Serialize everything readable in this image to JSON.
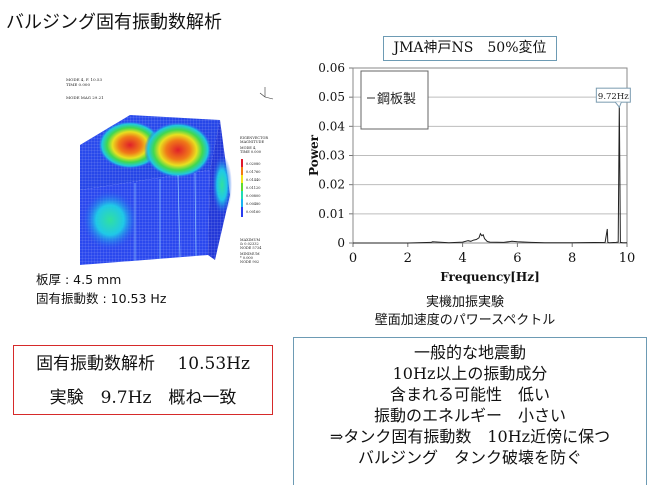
{
  "title": "バルジング固有振動数解析",
  "fea_model": {
    "header_lines": [
      "MODE 4, F. 10.53",
      "TIME 0.000",
      "MODE MAG 29.21"
    ],
    "axis_labels": [
      "Y",
      "Z",
      "X"
    ],
    "legend": {
      "title_lines": [
        "EIGENVECTOR",
        "MAGNITUDE",
        "MODE 4,",
        "TIME 0.000"
      ],
      "values": [
        "0.02080",
        "0.01760",
        "0.01440",
        "0.01120",
        "0.00800",
        "0.00480",
        "0.00160"
      ],
      "colors": [
        "#e0162b",
        "#f47a12",
        "#f2e51c",
        "#5fdc2e",
        "#1fdcb4",
        "#18b4f2",
        "#2a3ef0"
      ],
      "max_lines": [
        "MAXIMUM",
        "& 0.02332",
        "NODE 5734"
      ],
      "min_lines": [
        "MINIMUM",
        "* 0.000",
        "NODE 902"
      ]
    },
    "plate_thickness_label": "板厚 : 4.5 mm",
    "natural_frequency_label": "固有振動数 : 10.53 Hz"
  },
  "chart_title": "JMA神戸NS　50%変位",
  "chart_data": {
    "type": "line",
    "title": "JMA神戸NS　50%変位",
    "xlabel": "Frequency[Hz]",
    "ylabel": "Power",
    "xlim": [
      0,
      10
    ],
    "ylim": [
      0,
      0.06
    ],
    "x_ticks": [
      "0",
      "2",
      "4",
      "6",
      "8",
      "10"
    ],
    "y_ticks": [
      "0",
      "0.01",
      "0.02",
      "0.03",
      "0.04",
      "0.05",
      "0.06"
    ],
    "grid": "horizontal",
    "legend": [
      {
        "name": "鋼板製",
        "position": "top-left"
      }
    ],
    "annotations": [
      {
        "text": "9.72Hz",
        "x": 9.72,
        "y": 0.05
      }
    ],
    "series": [
      {
        "name": "鋼板製",
        "x": [
          0,
          1,
          2,
          2.85,
          2.9,
          3.5,
          4.0,
          4.2,
          4.3,
          4.4,
          4.5,
          4.6,
          4.65,
          4.7,
          4.75,
          4.8,
          4.9,
          5.0,
          5.5,
          5.8,
          6.0,
          6.5,
          7,
          8,
          9.2,
          9.28,
          9.3,
          9.35,
          9.6,
          9.68,
          9.72,
          9.76,
          9.85,
          10
        ],
        "y": [
          0,
          0,
          0,
          0.0002,
          0.0004,
          0.0001,
          0.0003,
          0.0008,
          0.0006,
          0.001,
          0.0012,
          0.0018,
          0.0032,
          0.0025,
          0.0028,
          0.0015,
          0.0005,
          0.0003,
          0.0002,
          0.0006,
          0.0004,
          0.0002,
          0.0001,
          0.0001,
          0.0002,
          0.0048,
          0.0002,
          0.0001,
          0.0002,
          0.0003,
          0.048,
          0.0002,
          0.0001,
          0.0001
        ]
      }
    ]
  },
  "captions": [
    "実機加振実験",
    "壁面加速度のパワースペクトル"
  ],
  "comparison_box": {
    "line1": "固有振動数解析　 10.53Hz",
    "line2": "実験　9.7Hz　概ね一致",
    "border_color": "#d62a2a"
  },
  "conclusion_box": {
    "lines": [
      "一般的な地震動",
      "10Hz以上の振動成分",
      "含まれる可能性　低い",
      "振動のエネルギー　小さい",
      "⇒タンク固有振動数　10Hz近傍に保つ",
      "バルジング　タンク破壊を防ぐ"
    ],
    "border_color": "#6d9bb4"
  }
}
